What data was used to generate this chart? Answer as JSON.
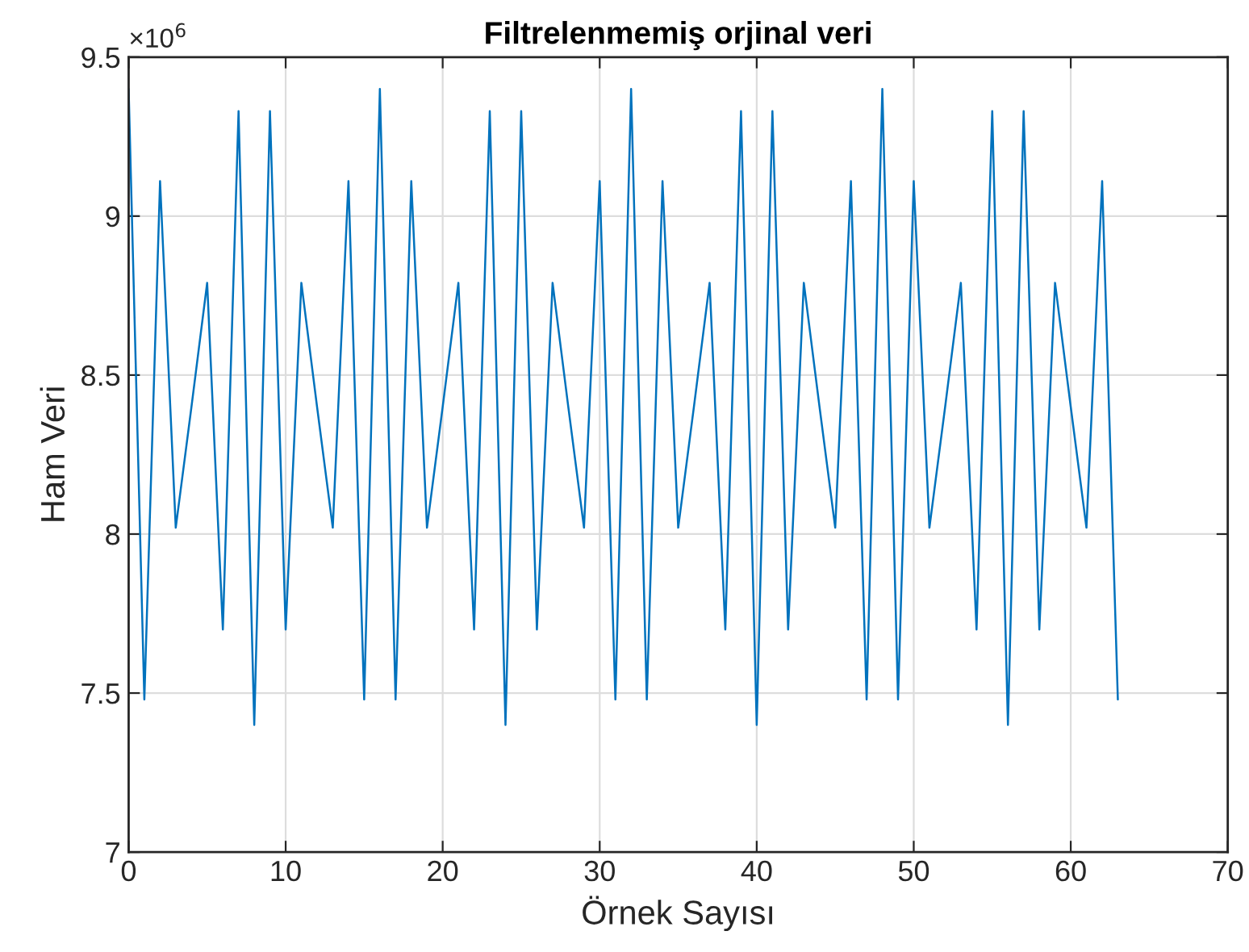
{
  "chart_data": {
    "type": "line",
    "title": "Filtrelenmemiş orjinal veri",
    "xlabel": "Örnek Sayısı",
    "ylabel": "Ham Veri",
    "annotations": [
      "×10$^{6}$"
    ],
    "x": [
      0,
      1,
      2,
      3,
      4,
      5,
      6,
      7,
      8,
      9,
      10,
      11,
      12,
      13,
      14,
      15,
      16,
      17,
      18,
      19,
      20,
      21,
      22,
      23,
      24,
      25,
      26,
      27,
      28,
      29,
      30,
      31,
      32,
      33,
      34,
      35,
      36,
      37,
      38,
      39,
      40,
      41,
      42,
      43,
      44,
      45,
      46,
      47,
      48,
      49,
      50,
      51,
      52,
      53,
      54,
      55,
      56,
      57,
      58,
      59,
      60,
      61,
      62,
      63
    ],
    "series": [
      {
        "color": "#0072bd",
        "values": [
          9.4,
          7.48,
          9.11,
          8.02,
          8.4,
          8.79,
          7.7,
          9.33,
          7.4,
          9.33,
          7.7,
          8.79,
          8.4,
          8.02,
          9.11,
          7.48,
          9.4,
          7.48,
          9.11,
          8.02,
          8.4,
          8.79,
          7.7,
          9.33,
          7.4,
          9.33,
          7.7,
          8.79,
          8.4,
          8.02,
          9.11,
          7.48,
          9.4,
          7.48,
          9.11,
          8.02,
          8.4,
          8.79,
          7.7,
          9.33,
          7.4,
          9.33,
          7.7,
          8.79,
          8.4,
          8.02,
          9.11,
          7.48,
          9.4,
          7.48,
          9.11,
          8.02,
          8.4,
          8.79,
          7.7,
          9.33,
          7.4,
          9.33,
          7.7,
          8.79,
          8.4,
          8.02,
          9.11,
          7.48
        ]
      }
    ],
    "xlim": [
      0,
      70
    ],
    "xticks": [
      0,
      10,
      20,
      30,
      40,
      50,
      60,
      70
    ],
    "ylim": [
      7,
      9.5
    ],
    "yticks": [
      7,
      7.5,
      8,
      8.5,
      9,
      9.5
    ],
    "grid": true,
    "marker": "none",
    "line_style": "solid"
  }
}
